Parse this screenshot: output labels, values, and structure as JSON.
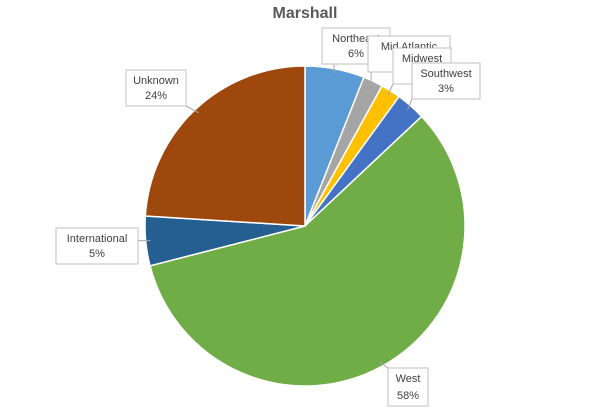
{
  "chart_data": {
    "type": "pie",
    "title": "Marshall",
    "categories": [
      "Northeast",
      "Mid Atlantic",
      "Midwest",
      "Southwest",
      "West",
      "International",
      "Unknown"
    ],
    "values": [
      6,
      2,
      2,
      3,
      58,
      5,
      24
    ],
    "value_labels": [
      "6%",
      null,
      null,
      "3%",
      "58%",
      "5%",
      "24%"
    ],
    "colors": [
      "#5b9bd5",
      "#a5a5a5",
      "#ffc000",
      "#4472c4",
      "#70ad47",
      "#255e91",
      "#9e480e"
    ]
  }
}
